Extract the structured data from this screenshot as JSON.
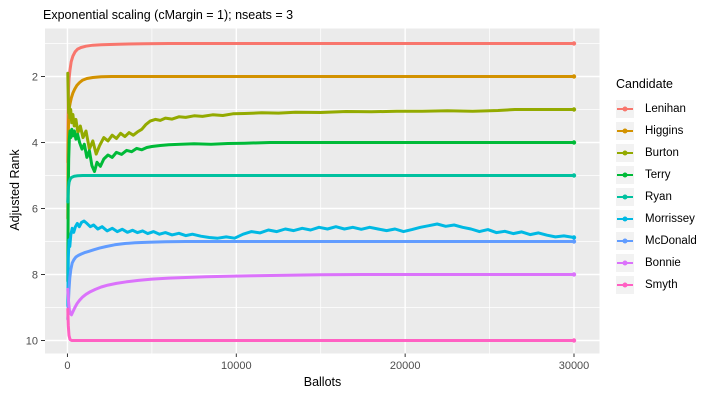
{
  "title": "Exponential scaling (cMargin = 1); nseats = 3",
  "legend": {
    "title": "Candidate"
  },
  "colors": {
    "panel_bg": "#EBEBEB",
    "grid": "#FFFFFF",
    "tick_label": "#4D4D4D",
    "tick_mark": "#333333",
    "legend_key_bg": "#F2F2F2"
  },
  "chart_data": {
    "type": "line",
    "title": "Exponential scaling (cMargin = 1); nseats = 3",
    "xlabel": "Ballots",
    "ylabel": "Adjusted Rank",
    "x_ticks": [
      0,
      10000,
      20000,
      30000
    ],
    "y_ticks": [
      2,
      4,
      6,
      8,
      10
    ],
    "x_minor": [
      5000,
      15000,
      25000
    ],
    "y_minor": [
      1,
      3,
      5,
      7,
      9
    ],
    "xlim": [
      -1330,
      31510
    ],
    "ylim": [
      0.545,
      10.394
    ],
    "y_reversed": true,
    "grid": true,
    "legend_position": "right",
    "series": [
      {
        "name": "Lenihan",
        "color": "#F8766D",
        "points": [
          [
            20,
            4.6
          ],
          [
            40,
            3.2
          ],
          [
            60,
            2.4
          ],
          [
            100,
            2.05
          ],
          [
            150,
            1.8
          ],
          [
            220,
            1.55
          ],
          [
            320,
            1.38
          ],
          [
            450,
            1.25
          ],
          [
            600,
            1.17
          ],
          [
            800,
            1.12
          ],
          [
            1100,
            1.08
          ],
          [
            1500,
            1.05
          ],
          [
            2000,
            1.04
          ],
          [
            3000,
            1.02
          ],
          [
            4500,
            1.01
          ],
          [
            6000,
            1.0
          ],
          [
            30000,
            1.0
          ]
        ]
      },
      {
        "name": "Higgins",
        "color": "#D39200",
        "points": [
          [
            20,
            6.3
          ],
          [
            40,
            4.1
          ],
          [
            70,
            3.3
          ],
          [
            110,
            2.95
          ],
          [
            160,
            2.8
          ],
          [
            230,
            2.65
          ],
          [
            320,
            2.5
          ],
          [
            430,
            2.38
          ],
          [
            560,
            2.27
          ],
          [
            720,
            2.18
          ],
          [
            900,
            2.11
          ],
          [
            1150,
            2.06
          ],
          [
            1500,
            2.03
          ],
          [
            2000,
            2.01
          ],
          [
            2600,
            2.0
          ],
          [
            30000,
            2.0
          ]
        ]
      },
      {
        "name": "Burton",
        "color": "#93AA00",
        "points": [
          [
            20,
            1.9
          ],
          [
            45,
            2.6
          ],
          [
            70,
            3.1
          ],
          [
            100,
            2.85
          ],
          [
            140,
            3.25
          ],
          [
            190,
            3.0
          ],
          [
            250,
            3.4
          ],
          [
            320,
            3.15
          ],
          [
            400,
            3.5
          ],
          [
            500,
            3.3
          ],
          [
            620,
            3.7
          ],
          [
            760,
            3.5
          ],
          [
            920,
            3.85
          ],
          [
            1100,
            3.65
          ],
          [
            1300,
            4.2
          ],
          [
            1500,
            3.95
          ],
          [
            1700,
            4.35
          ],
          [
            1900,
            4.1
          ],
          [
            2150,
            3.85
          ],
          [
            2400,
            3.95
          ],
          [
            2650,
            3.78
          ],
          [
            2900,
            3.88
          ],
          [
            3150,
            3.72
          ],
          [
            3400,
            3.82
          ],
          [
            3650,
            3.7
          ],
          [
            3900,
            3.78
          ],
          [
            4150,
            3.68
          ],
          [
            4400,
            3.6
          ],
          [
            4650,
            3.45
          ],
          [
            4900,
            3.35
          ],
          [
            5200,
            3.3
          ],
          [
            5500,
            3.33
          ],
          [
            5800,
            3.26
          ],
          [
            6200,
            3.29
          ],
          [
            6600,
            3.22
          ],
          [
            7000,
            3.24
          ],
          [
            7500,
            3.19
          ],
          [
            8000,
            3.21
          ],
          [
            8600,
            3.16
          ],
          [
            9200,
            3.18
          ],
          [
            9800,
            3.13
          ],
          [
            10500,
            3.12
          ],
          [
            11500,
            3.1
          ],
          [
            12500,
            3.11
          ],
          [
            13500,
            3.08
          ],
          [
            15000,
            3.09
          ],
          [
            16500,
            3.06
          ],
          [
            18000,
            3.07
          ],
          [
            19500,
            3.05
          ],
          [
            21000,
            3.05
          ],
          [
            22500,
            3.04
          ],
          [
            24000,
            3.05
          ],
          [
            25500,
            3.03
          ],
          [
            26500,
            3.0
          ],
          [
            28000,
            3.0
          ],
          [
            30000,
            3.0
          ]
        ]
      },
      {
        "name": "Terry",
        "color": "#00BA38",
        "points": [
          [
            20,
            8.2
          ],
          [
            45,
            5.6
          ],
          [
            75,
            4.5
          ],
          [
            110,
            3.9
          ],
          [
            150,
            3.65
          ],
          [
            200,
            3.85
          ],
          [
            260,
            3.6
          ],
          [
            330,
            3.8
          ],
          [
            410,
            3.65
          ],
          [
            500,
            3.9
          ],
          [
            600,
            3.75
          ],
          [
            720,
            4.0
          ],
          [
            860,
            4.2
          ],
          [
            1000,
            4.05
          ],
          [
            1150,
            4.45
          ],
          [
            1300,
            4.25
          ],
          [
            1450,
            4.7
          ],
          [
            1600,
            4.88
          ],
          [
            1750,
            4.6
          ],
          [
            1950,
            4.72
          ],
          [
            2150,
            4.5
          ],
          [
            2400,
            4.38
          ],
          [
            2650,
            4.45
          ],
          [
            2900,
            4.3
          ],
          [
            3200,
            4.36
          ],
          [
            3500,
            4.24
          ],
          [
            3800,
            4.28
          ],
          [
            4100,
            4.18
          ],
          [
            4400,
            4.22
          ],
          [
            4700,
            4.15
          ],
          [
            5000,
            4.12
          ],
          [
            5500,
            4.09
          ],
          [
            6000,
            4.07
          ],
          [
            6700,
            4.05
          ],
          [
            7500,
            4.04
          ],
          [
            8500,
            4.05
          ],
          [
            9500,
            4.03
          ],
          [
            10500,
            4.02
          ],
          [
            12000,
            4.0
          ],
          [
            30000,
            4.0
          ]
        ]
      },
      {
        "name": "Ryan",
        "color": "#00C19F",
        "points": [
          [
            20,
            5.8
          ],
          [
            50,
            5.4
          ],
          [
            100,
            5.2
          ],
          [
            170,
            5.1
          ],
          [
            260,
            5.05
          ],
          [
            400,
            5.02
          ],
          [
            600,
            5.01
          ],
          [
            900,
            5.0
          ],
          [
            30000,
            5.0
          ]
        ]
      },
      {
        "name": "Morrissey",
        "color": "#00B9E3",
        "points": [
          [
            20,
            8.95
          ],
          [
            50,
            7.5
          ],
          [
            90,
            6.95
          ],
          [
            140,
            7.15
          ],
          [
            200,
            6.8
          ],
          [
            280,
            6.6
          ],
          [
            370,
            6.72
          ],
          [
            470,
            6.55
          ],
          [
            580,
            6.45
          ],
          [
            700,
            6.55
          ],
          [
            830,
            6.42
          ],
          [
            980,
            6.38
          ],
          [
            1150,
            6.45
          ],
          [
            1350,
            6.55
          ],
          [
            1550,
            6.5
          ],
          [
            1800,
            6.62
          ],
          [
            2050,
            6.55
          ],
          [
            2350,
            6.68
          ],
          [
            2650,
            6.6
          ],
          [
            2950,
            6.7
          ],
          [
            3250,
            6.63
          ],
          [
            3550,
            6.72
          ],
          [
            3850,
            6.66
          ],
          [
            4150,
            6.73
          ],
          [
            4450,
            6.68
          ],
          [
            4750,
            6.76
          ],
          [
            5100,
            6.7
          ],
          [
            5450,
            6.78
          ],
          [
            5800,
            6.73
          ],
          [
            6200,
            6.8
          ],
          [
            6600,
            6.75
          ],
          [
            7000,
            6.82
          ],
          [
            7400,
            6.78
          ],
          [
            7900,
            6.84
          ],
          [
            8400,
            6.88
          ],
          [
            8900,
            6.9
          ],
          [
            9400,
            6.86
          ],
          [
            9900,
            6.9
          ],
          [
            10400,
            6.78
          ],
          [
            10900,
            6.7
          ],
          [
            11400,
            6.74
          ],
          [
            11900,
            6.65
          ],
          [
            12400,
            6.7
          ],
          [
            12900,
            6.62
          ],
          [
            13400,
            6.67
          ],
          [
            13900,
            6.6
          ],
          [
            14400,
            6.65
          ],
          [
            14900,
            6.57
          ],
          [
            15400,
            6.62
          ],
          [
            15900,
            6.55
          ],
          [
            16400,
            6.62
          ],
          [
            16900,
            6.57
          ],
          [
            17400,
            6.63
          ],
          [
            17900,
            6.57
          ],
          [
            18400,
            6.62
          ],
          [
            18900,
            6.67
          ],
          [
            19400,
            6.62
          ],
          [
            19900,
            6.7
          ],
          [
            20400,
            6.64
          ],
          [
            20900,
            6.57
          ],
          [
            21400,
            6.52
          ],
          [
            21900,
            6.47
          ],
          [
            22400,
            6.54
          ],
          [
            22900,
            6.5
          ],
          [
            23400,
            6.57
          ],
          [
            23900,
            6.62
          ],
          [
            24400,
            6.7
          ],
          [
            24900,
            6.64
          ],
          [
            25400,
            6.73
          ],
          [
            25900,
            6.69
          ],
          [
            26400,
            6.76
          ],
          [
            26900,
            6.71
          ],
          [
            27400,
            6.79
          ],
          [
            27900,
            6.74
          ],
          [
            28400,
            6.81
          ],
          [
            28900,
            6.86
          ],
          [
            29400,
            6.83
          ],
          [
            30000,
            6.88
          ]
        ]
      },
      {
        "name": "McDonald",
        "color": "#619CFF",
        "points": [
          [
            20,
            9.35
          ],
          [
            50,
            8.9
          ],
          [
            90,
            8.45
          ],
          [
            140,
            8.1
          ],
          [
            200,
            7.85
          ],
          [
            280,
            7.65
          ],
          [
            380,
            7.55
          ],
          [
            500,
            7.47
          ],
          [
            650,
            7.42
          ],
          [
            820,
            7.38
          ],
          [
            1000,
            7.34
          ],
          [
            1250,
            7.3
          ],
          [
            1550,
            7.25
          ],
          [
            1900,
            7.2
          ],
          [
            2300,
            7.15
          ],
          [
            2800,
            7.1
          ],
          [
            3400,
            7.06
          ],
          [
            4000,
            7.04
          ],
          [
            4800,
            7.02
          ],
          [
            5800,
            7.01
          ],
          [
            7000,
            7.0
          ],
          [
            30000,
            7.0
          ]
        ]
      },
      {
        "name": "Bonnie",
        "color": "#DB72FB",
        "points": [
          [
            20,
            8.45
          ],
          [
            60,
            8.8
          ],
          [
            110,
            9.05
          ],
          [
            170,
            9.18
          ],
          [
            240,
            9.22
          ],
          [
            330,
            9.12
          ],
          [
            440,
            9.0
          ],
          [
            570,
            8.88
          ],
          [
            720,
            8.78
          ],
          [
            900,
            8.68
          ],
          [
            1100,
            8.6
          ],
          [
            1350,
            8.52
          ],
          [
            1650,
            8.45
          ],
          [
            2000,
            8.38
          ],
          [
            2400,
            8.32
          ],
          [
            2900,
            8.27
          ],
          [
            3500,
            8.22
          ],
          [
            4200,
            8.18
          ],
          [
            5000,
            8.14
          ],
          [
            6000,
            8.11
          ],
          [
            7000,
            8.09
          ],
          [
            8200,
            8.07
          ],
          [
            9500,
            8.05
          ],
          [
            11000,
            8.04
          ],
          [
            13000,
            8.02
          ],
          [
            15000,
            8.01
          ],
          [
            17500,
            8.0
          ],
          [
            30000,
            8.0
          ]
        ]
      },
      {
        "name": "Smyth",
        "color": "#FF61C3",
        "points": [
          [
            20,
            9.05
          ],
          [
            50,
            9.55
          ],
          [
            90,
            9.85
          ],
          [
            150,
            9.97
          ],
          [
            250,
            10.0
          ],
          [
            30000,
            10.0
          ]
        ]
      }
    ]
  }
}
